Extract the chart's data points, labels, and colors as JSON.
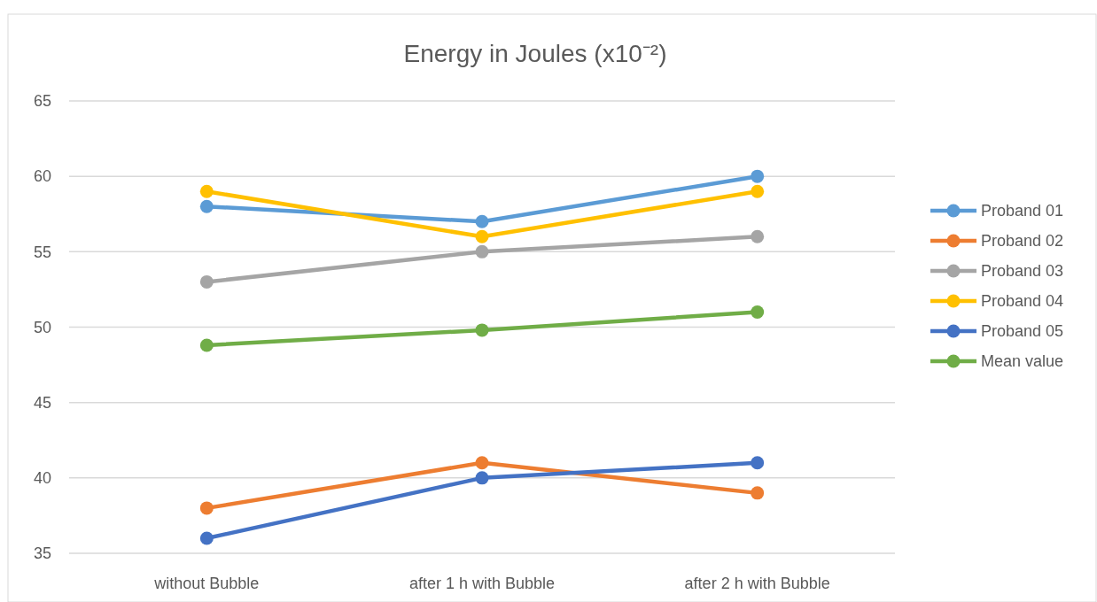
{
  "chart_data": {
    "type": "line",
    "title": "Energy in Joules (x10⁻²)",
    "categories": [
      "without Bubble",
      "after 1 h with Bubble",
      "after 2 h with  Bubble"
    ],
    "series": [
      {
        "name": "Proband 01",
        "color": "#5b9bd5",
        "values": [
          58,
          57,
          60
        ]
      },
      {
        "name": "Proband 02",
        "color": "#ed7d31",
        "values": [
          38,
          41,
          39
        ]
      },
      {
        "name": "Proband 03",
        "color": "#a5a5a5",
        "values": [
          53,
          55,
          56
        ]
      },
      {
        "name": "Proband 04",
        "color": "#ffc000",
        "values": [
          59,
          56,
          59
        ]
      },
      {
        "name": "Proband 05",
        "color": "#4472c4",
        "values": [
          36,
          40,
          41
        ]
      },
      {
        "name": "Mean value",
        "color": "#70ad47",
        "values": [
          48.8,
          49.8,
          51
        ]
      }
    ],
    "ylim": [
      35,
      65
    ],
    "yticks": [
      35,
      40,
      45,
      50,
      55,
      60,
      65
    ],
    "grid": "y",
    "legend": "right",
    "marker": "circle",
    "line_style": "solid"
  }
}
